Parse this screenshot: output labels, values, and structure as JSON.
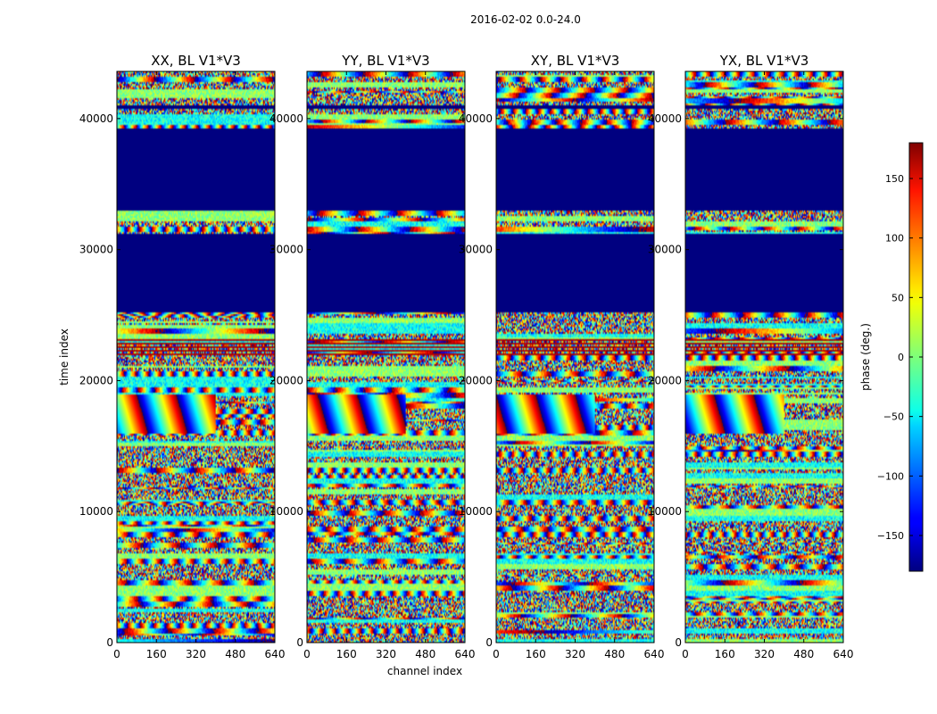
{
  "chart_data": {
    "type": "heatmap",
    "suptitle": "2016-02-02 0.0-24.0",
    "ylabel": "time index",
    "xlabel": "channel index",
    "xlim": [
      0,
      640
    ],
    "ylim": [
      0,
      43600
    ],
    "xticks": [
      0,
      160,
      320,
      480,
      640
    ],
    "yticks": [
      0,
      10000,
      20000,
      30000,
      40000
    ],
    "colorbar": {
      "label": "phase (deg.)",
      "range": [
        -180,
        180
      ],
      "ticks": [
        150,
        100,
        50,
        0,
        -50,
        -100,
        -150
      ],
      "tick_labels": [
        "150",
        "100",
        "50",
        "0",
        "−50",
        "−100",
        "−150"
      ],
      "colormap": "jet"
    },
    "panels": [
      {
        "title": "XX, BL V1*V3",
        "polarization": "XX",
        "seed": 11
      },
      {
        "title": "YY, BL V1*V3",
        "polarization": "YY",
        "seed": 23
      },
      {
        "title": "XY, BL V1*V3",
        "polarization": "XY",
        "seed": 37
      },
      {
        "title": "YX, BL V1*V3",
        "polarization": "YX",
        "seed": 51
      }
    ],
    "flagged_time_ranges": [
      [
        25200,
        31200
      ],
      [
        33000,
        39300
      ],
      [
        40700,
        41000
      ]
    ],
    "fringe_time_range": [
      16000,
      18900
    ],
    "fringe_channel_range": [
      0,
      400
    ]
  }
}
